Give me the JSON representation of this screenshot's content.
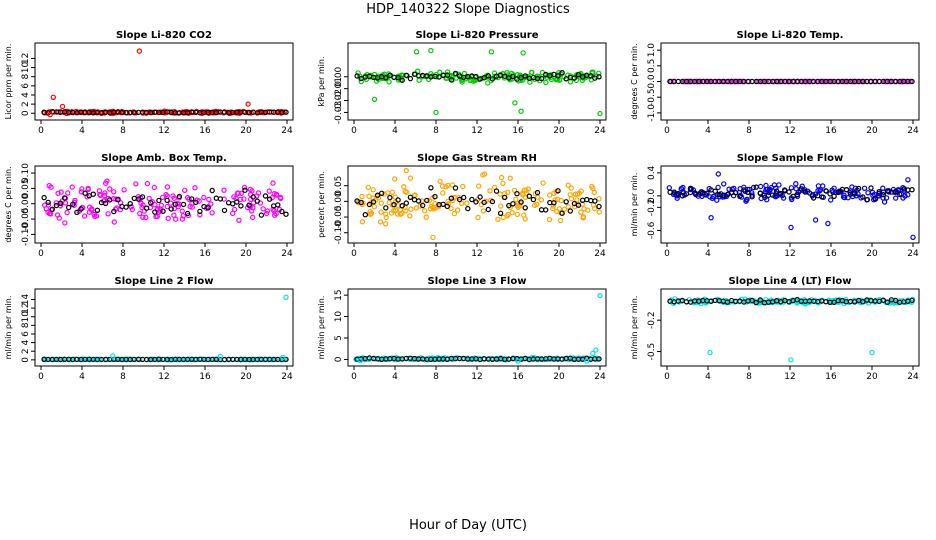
{
  "figure": {
    "title": "HDP_140322  Slope Diagnostics",
    "xlabel": "Hour of Day (UTC)"
  },
  "chart_data": [
    {
      "id": "p1",
      "type": "scatter",
      "title": "Slope Li-820 CO2",
      "ylabel": "Licor ppm per min.",
      "color": "#ff0000",
      "xlim": [
        0,
        24
      ],
      "xticks": [
        0,
        4,
        8,
        12,
        16,
        20,
        24
      ],
      "xtick_labels": [
        "0",
        "4",
        "8",
        "12",
        "16",
        "20",
        "24"
      ],
      "ylim": [
        -0.6,
        14.5
      ],
      "yticks": [
        0,
        2,
        4,
        6,
        8,
        10,
        12
      ],
      "ytick_labels": [
        "0",
        "2",
        "4",
        "6",
        "8",
        "10",
        "12"
      ],
      "baseline": 0.2,
      "spread": 0.3,
      "spread_black": 0.2,
      "outliers": [
        [
          9.6,
          13.6
        ],
        [
          1.2,
          3.5
        ],
        [
          2.1,
          1.5
        ],
        [
          20.2,
          2.0
        ],
        [
          0.9,
          -0.3
        ]
      ]
    },
    {
      "id": "p2",
      "type": "scatter",
      "title": "Slope Li-820 Pressure",
      "ylabel": "kPa per min.",
      "color": "#00cc00",
      "xlim": [
        0,
        24
      ],
      "xticks": [
        0,
        4,
        8,
        12,
        16,
        20,
        24
      ],
      "xtick_labels": [
        "0",
        "4",
        "8",
        "12",
        "16",
        "20",
        "24"
      ],
      "ylim": [
        -0.033,
        0.025
      ],
      "yticks": [
        0.0,
        -0.01,
        -0.02,
        -0.03
      ],
      "ytick_labels": [
        "0.00",
        "-0.01",
        "-0.02",
        "-0.03"
      ],
      "baseline": 0.0,
      "spread": 0.006,
      "spread_black": 0.004,
      "outliers": [
        [
          8.0,
          -0.03
        ],
        [
          16.3,
          -0.029
        ],
        [
          24.0,
          -0.031
        ],
        [
          15.7,
          -0.022
        ],
        [
          2.0,
          -0.019
        ],
        [
          6.1,
          0.021
        ],
        [
          7.5,
          0.022
        ],
        [
          13.4,
          0.021
        ],
        [
          16.5,
          0.02
        ]
      ]
    },
    {
      "id": "p3",
      "type": "scatter",
      "title": "Slope Li-820 Temp.",
      "ylabel": "degrees C per min.",
      "color": "#cc33cc",
      "xlim": [
        0,
        24
      ],
      "xticks": [
        0,
        4,
        8,
        12,
        16,
        20,
        24
      ],
      "xtick_labels": [
        "0",
        "4",
        "8",
        "12",
        "16",
        "20",
        "24"
      ],
      "ylim": [
        -1.1,
        1.1
      ],
      "yticks": [
        1.0,
        0.5,
        0.0,
        -0.5,
        -1.0
      ],
      "ytick_labels": [
        "1.0",
        "0.5",
        "0.0",
        "-0.5",
        "-1.0"
      ],
      "baseline": 0.0,
      "spread": 0.0,
      "spread_black": 0.0,
      "outliers": []
    },
    {
      "id": "p4",
      "type": "scatter",
      "title": "Slope Amb. Box Temp.",
      "ylabel": "degrees C per min.",
      "color": "#ff00ff",
      "xlim": [
        0,
        24
      ],
      "xticks": [
        0,
        4,
        8,
        12,
        16,
        20,
        24
      ],
      "xtick_labels": [
        "0",
        "4",
        "8",
        "12",
        "16",
        "20",
        "24"
      ],
      "ylim": [
        -0.115,
        0.11
      ],
      "yticks": [
        0.1,
        0.05,
        0.0,
        -0.05,
        -0.1
      ],
      "ytick_labels": [
        "0.10",
        "0.05",
        "0.00",
        "-0.05",
        "-0.10"
      ],
      "baseline": 0.0,
      "spread": 0.1,
      "spread_black": 0.06,
      "outliers": []
    },
    {
      "id": "p5",
      "type": "scatter",
      "title": "Slope Gas Stream RH",
      "ylabel": "percent per min.",
      "color": "#ffa500",
      "xlim": [
        0,
        24
      ],
      "xticks": [
        0,
        4,
        8,
        12,
        16,
        20,
        24
      ],
      "xtick_labels": [
        "0",
        "4",
        "8",
        "12",
        "16",
        "20",
        "24"
      ],
      "ylim": [
        -0.12,
        0.1
      ],
      "yticks": [
        0.05,
        0.0,
        -0.05,
        -0.1
      ],
      "ytick_labels": [
        "0.05",
        "0.00",
        "-0.05",
        "-0.10"
      ],
      "baseline": 0.0,
      "spread": 0.1,
      "spread_black": 0.06,
      "outliers": [
        [
          7.7,
          -0.115
        ],
        [
          5.1,
          0.098
        ]
      ]
    },
    {
      "id": "p6",
      "type": "scatter",
      "title": "Slope Sample Flow",
      "ylabel": "ml/min per min.",
      "color": "#0000ff",
      "xlim": [
        0,
        24
      ],
      "xticks": [
        0,
        4,
        8,
        12,
        16,
        20,
        24
      ],
      "xtick_labels": [
        "0",
        "4",
        "8",
        "12",
        "16",
        "20",
        "24"
      ],
      "ylim": [
        -0.75,
        0.45
      ],
      "yticks": [
        0.4,
        0.0,
        -0.2,
        -0.6
      ],
      "ytick_labels": [
        "0.4",
        "0.0",
        "-0.2",
        "-0.6"
      ],
      "baseline": 0.05,
      "spread": 0.22,
      "spread_black": 0.14,
      "outliers": [
        [
          5.0,
          0.38
        ],
        [
          24.0,
          -0.72
        ],
        [
          12.1,
          -0.55
        ],
        [
          14.5,
          -0.42
        ],
        [
          15.7,
          -0.48
        ],
        [
          4.3,
          -0.38
        ],
        [
          23.5,
          0.28
        ]
      ]
    },
    {
      "id": "p7",
      "type": "scatter",
      "title": "Slope Line 2 Flow",
      "ylabel": "ml/min per min.",
      "color": "#00e5ee",
      "xlim": [
        0,
        24
      ],
      "xticks": [
        0,
        4,
        8,
        12,
        16,
        20,
        24
      ],
      "xtick_labels": [
        "0",
        "4",
        "8",
        "12",
        "16",
        "20",
        "24"
      ],
      "ylim": [
        -0.5,
        15.5
      ],
      "yticks": [
        0,
        2,
        4,
        6,
        8,
        10,
        12,
        14
      ],
      "ytick_labels": [
        "0",
        "2",
        "4",
        "6",
        "8",
        "10",
        "12",
        "14"
      ],
      "baseline": 0.1,
      "spread": 0.1,
      "spread_black": 0.05,
      "outliers": [
        [
          23.9,
          14.5
        ],
        [
          7.0,
          0.9
        ],
        [
          17.5,
          0.8
        ],
        [
          23.6,
          0.6
        ]
      ]
    },
    {
      "id": "p8",
      "type": "scatter",
      "title": "Slope Line 3 Flow",
      "ylabel": "ml/min per min.",
      "color": "#00e5ee",
      "xlim": [
        0,
        24
      ],
      "xticks": [
        0,
        4,
        8,
        12,
        16,
        20,
        24
      ],
      "xtick_labels": [
        "0",
        "4",
        "8",
        "12",
        "16",
        "20",
        "24"
      ],
      "ylim": [
        -0.6,
        15.5
      ],
      "yticks": [
        0,
        5,
        10,
        15
      ],
      "ytick_labels": [
        "0",
        "5",
        "10",
        "15"
      ],
      "baseline": 0.15,
      "spread": 0.35,
      "spread_black": 0.25,
      "outliers": [
        [
          24.0,
          14.9
        ],
        [
          23.6,
          2.2
        ],
        [
          23.3,
          1.4
        ],
        [
          16.0,
          -0.4
        ],
        [
          22.7,
          -0.4
        ],
        [
          0.6,
          -0.3
        ]
      ]
    },
    {
      "id": "p9",
      "type": "scatter",
      "title": "Slope Line 4 (LT) Flow",
      "ylabel": "ml/min per min.",
      "color": "#00e5ee",
      "xlim": [
        0,
        24
      ],
      "xticks": [
        0,
        4,
        8,
        12,
        16,
        20,
        24
      ],
      "xtick_labels": [
        "0",
        "4",
        "8",
        "12",
        "16",
        "20",
        "24"
      ],
      "ylim": [
        -0.6,
        0.06
      ],
      "yticks": [
        -0.2,
        -0.5
      ],
      "ytick_labels": [
        "-0.2",
        "-0.5"
      ],
      "baseline": -0.02,
      "spread": 0.03,
      "spread_black": 0.02,
      "outliers": [
        [
          4.2,
          -0.51
        ],
        [
          12.1,
          -0.58
        ],
        [
          20.0,
          -0.51
        ]
      ]
    }
  ]
}
